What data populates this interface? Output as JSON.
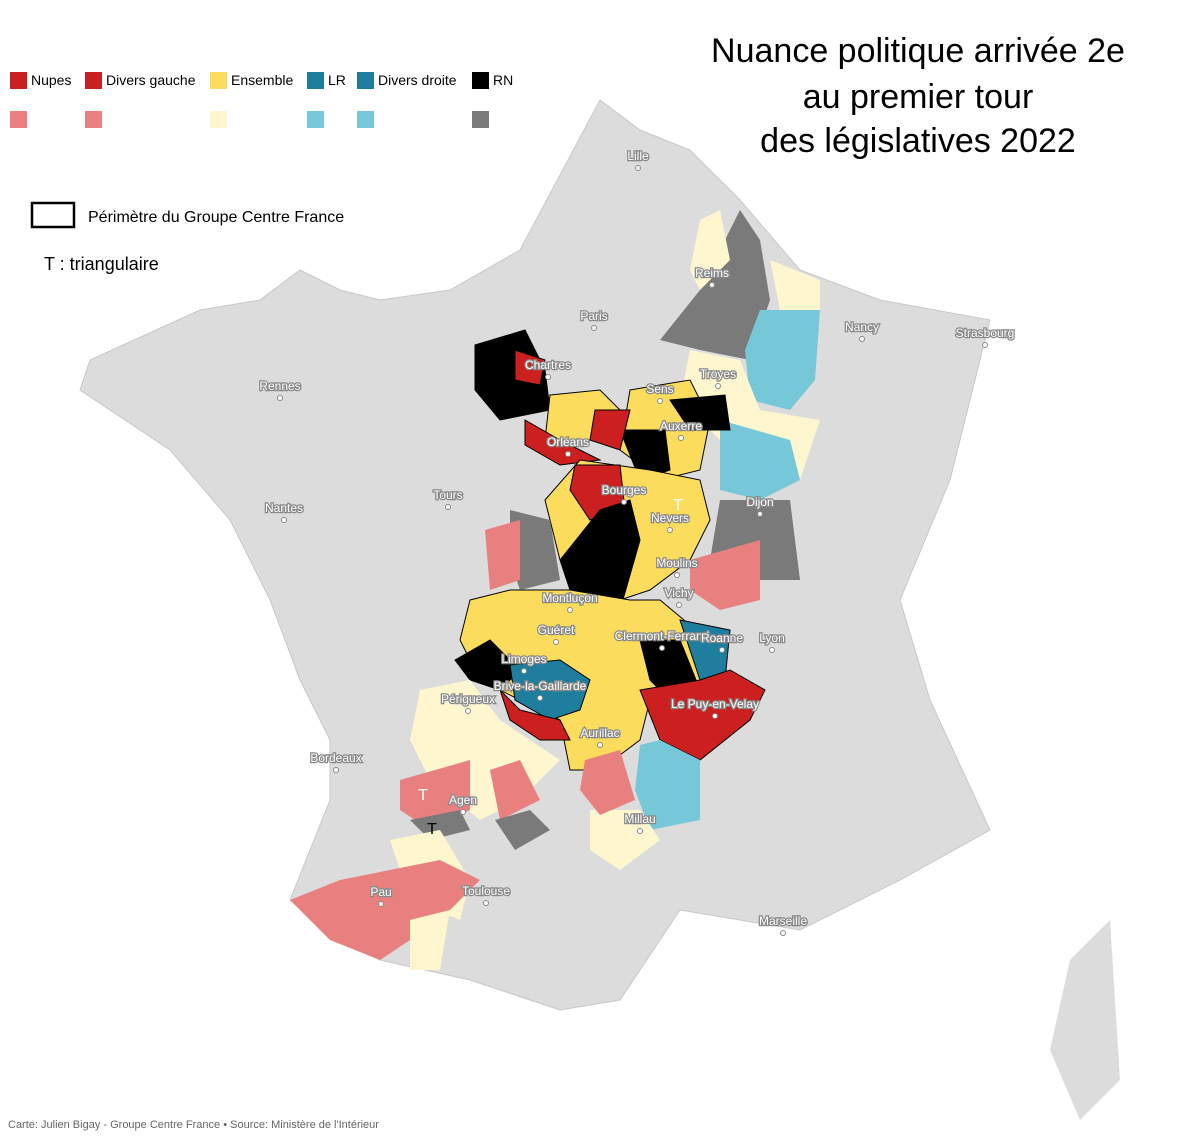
{
  "title": [
    "Nuance politique arrivée 2e",
    "au premier tour",
    "des législatives 2022"
  ],
  "legend": [
    {
      "label": "Nupes",
      "color": "#cc2020",
      "light": "#e98080"
    },
    {
      "label": "Divers gauche",
      "color": "#cc2020",
      "light": "#e98080"
    },
    {
      "label": "Ensemble",
      "color": "#fbdc5c",
      "light": "#fdf6cf"
    },
    {
      "label": "LR",
      "color": "#1f7d9d",
      "light": "#76c8d9"
    },
    {
      "label": "Divers droite",
      "color": "#1f7d9d",
      "light": "#76c8d9"
    },
    {
      "label": "RN",
      "color": "#000000",
      "light": "#7a7a7a"
    }
  ],
  "perimeter_note": "Périmètre du Groupe Centre France",
  "triangulaire_note": "T : triangulaire",
  "markers": [
    "T",
    "T",
    "T"
  ],
  "cities": [
    "Lille",
    "Reims",
    "Paris",
    "Nancy",
    "Strasbourg",
    "Rennes",
    "Chartres",
    "Troyes",
    "Sens",
    "Orléans",
    "Auxerre",
    "Tours",
    "Bourges",
    "Nantes",
    "Dijon",
    "Nevers",
    "Moulins",
    "Montluçon",
    "Vichy",
    "Guéret",
    "Clermont-Ferrand",
    "Roanne",
    "Lyon",
    "Limoges",
    "Brive-la-Gaillarde",
    "Le Puy-en-Velay",
    "Périgueux",
    "Aurillac",
    "Bordeaux",
    "Agen",
    "Millau",
    "Pau",
    "Toulouse",
    "Marseille"
  ],
  "source": "Carte: Julien Bigay - Groupe Centre France • Source: Ministère de l'Intérieur"
}
